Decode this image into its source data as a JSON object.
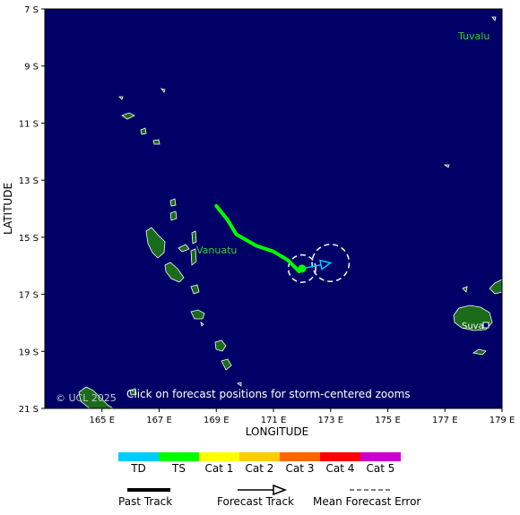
{
  "map": {
    "ocean_color": "#000066",
    "land_color": "#1a6b1a",
    "coast_color": "#ffffff",
    "lon_range": [
      163,
      179
    ],
    "lat_range": [
      -21,
      -7
    ],
    "x_axis_title": "LONGITUDE",
    "y_axis_title": "LATITUDE",
    "lat_ticks": [
      {
        "label": "7 S",
        "lat": -7
      },
      {
        "label": "9 S",
        "lat": -9
      },
      {
        "label": "11 S",
        "lat": -11
      },
      {
        "label": "13 S",
        "lat": -13
      },
      {
        "label": "15 S",
        "lat": -15
      },
      {
        "label": "17 S",
        "lat": -17
      },
      {
        "label": "19 S",
        "lat": -19
      },
      {
        "label": "21 S",
        "lat": -21
      }
    ],
    "lon_ticks": [
      {
        "label": "165 E",
        "lon": 165
      },
      {
        "label": "167 E",
        "lon": 167
      },
      {
        "label": "169 E",
        "lon": 169
      },
      {
        "label": "171 E",
        "lon": 171
      },
      {
        "label": "173 E",
        "lon": 173
      },
      {
        "label": "175 E",
        "lon": 175
      },
      {
        "label": "177 E",
        "lon": 177
      },
      {
        "label": "179 E",
        "lon": 179
      }
    ],
    "places": {
      "tuvalu": "Tuvalu",
      "vanuatu": "Vanuatu",
      "suva": "Suva"
    },
    "note": "Click on forecast positions for storm-centered zooms",
    "copyright": "© UCL 2025"
  },
  "storm": {
    "past_track_color": "#00ff00",
    "forecast_color": "#00ccff",
    "past_track": [
      [
        169.0,
        -13.9
      ],
      [
        169.4,
        -14.4
      ],
      [
        169.7,
        -14.9
      ],
      [
        170.4,
        -15.3
      ],
      [
        171.0,
        -15.5
      ],
      [
        171.5,
        -15.8
      ],
      [
        171.9,
        -16.2
      ],
      [
        172.0,
        -16.1
      ]
    ],
    "current_position": [
      172.0,
      -16.1
    ],
    "forecast_track": [
      [
        172.0,
        -16.1
      ],
      [
        173.0,
        -15.9
      ]
    ],
    "error_circles": [
      {
        "lon": 172.0,
        "lat": -16.1,
        "radius_deg": 0.48
      },
      {
        "lon": 173.0,
        "lat": -15.9,
        "radius_deg": 0.65
      }
    ]
  },
  "legend": {
    "categories": [
      {
        "label": "TD",
        "color": "#00ccff"
      },
      {
        "label": "TS",
        "color": "#00ff00"
      },
      {
        "label": "Cat 1",
        "color": "#ffff00"
      },
      {
        "label": "Cat 2",
        "color": "#ffcc00"
      },
      {
        "label": "Cat 3",
        "color": "#ff6600"
      },
      {
        "label": "Cat 4",
        "color": "#ff0000"
      },
      {
        "label": "Cat 5",
        "color": "#cc00cc"
      }
    ],
    "past_track_label": "Past Track",
    "forecast_track_label": "Forecast Track",
    "error_label": "Mean Forecast Error"
  }
}
